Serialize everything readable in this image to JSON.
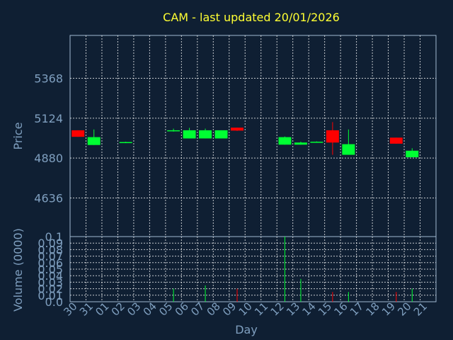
{
  "chart_data": {
    "type": "candlestick",
    "title": "CAM - last updated 20/01/2026",
    "xlabel": "Day",
    "price_panel": {
      "ylabel": "Price",
      "y_ticks": [
        4636,
        4880,
        5124,
        5368
      ],
      "ylim": [
        4400,
        5630
      ],
      "grid": true
    },
    "volume_panel": {
      "ylabel": "Volume (0000)",
      "y_ticks": [
        "0.0",
        "0.01",
        "0.02",
        "0.03",
        "0.04",
        "0.05",
        "0.06",
        "0.07",
        "0.08",
        "0.09",
        "0.1"
      ],
      "ylim": [
        0,
        0.1
      ],
      "grid": true
    },
    "x_ticks": [
      "30",
      "31",
      "01",
      "02",
      "03",
      "04",
      "05",
      "06",
      "07",
      "08",
      "09",
      "10",
      "11",
      "12",
      "13",
      "14",
      "15",
      "16",
      "17",
      "18",
      "19",
      "20",
      "21"
    ],
    "candles": [
      {
        "day": "30",
        "open": 5050,
        "high": 5050,
        "low": 5010,
        "close": 5010,
        "volume": 0.0
      },
      {
        "day": "31",
        "open": 4960,
        "high": 5055,
        "low": 4960,
        "close": 5008,
        "volume": 0.0
      },
      {
        "day": "02",
        "open": 4975,
        "high": 4980,
        "low": 4975,
        "close": 4978,
        "volume": 0.0
      },
      {
        "day": "05",
        "open": 5045,
        "high": 5060,
        "low": 5042,
        "close": 5050,
        "volume": 0.02
      },
      {
        "day": "06",
        "open": 5000,
        "high": 5065,
        "low": 5000,
        "close": 5050,
        "volume": 0.0
      },
      {
        "day": "07",
        "open": 5000,
        "high": 5060,
        "low": 5000,
        "close": 5050,
        "volume": 0.025
      },
      {
        "day": "08",
        "open": 5000,
        "high": 5050,
        "low": 5000,
        "close": 5050,
        "volume": 0.0
      },
      {
        "day": "09",
        "open": 5066,
        "high": 5066,
        "low": 5046,
        "close": 5048,
        "volume": 0.02
      },
      {
        "day": "12",
        "open": 4962,
        "high": 5012,
        "low": 4962,
        "close": 5008,
        "volume": 0.1
      },
      {
        "day": "13",
        "open": 4962,
        "high": 4980,
        "low": 4962,
        "close": 4975,
        "volume": 0.035
      },
      {
        "day": "14",
        "open": 4975,
        "high": 4982,
        "low": 4975,
        "close": 4980,
        "volume": 0.0
      },
      {
        "day": "15",
        "open": 5050,
        "high": 5100,
        "low": 4900,
        "close": 4975,
        "volume": 0.015
      },
      {
        "day": "16",
        "open": 4900,
        "high": 5055,
        "low": 4900,
        "close": 4965,
        "volume": 0.015
      },
      {
        "day": "19",
        "open": 5005,
        "high": 5005,
        "low": 4968,
        "close": 4968,
        "volume": 0.015
      },
      {
        "day": "20",
        "open": 4885,
        "high": 4940,
        "low": 4885,
        "close": 4925,
        "volume": 0.02
      }
    ]
  },
  "colors": {
    "background": "#0f1f33",
    "up": "#00ff33",
    "down": "#ff0000",
    "axis_text": "#7f9fbf",
    "title": "#ffff33",
    "grid": "#ffffff",
    "frame": "#a0b8d0"
  }
}
